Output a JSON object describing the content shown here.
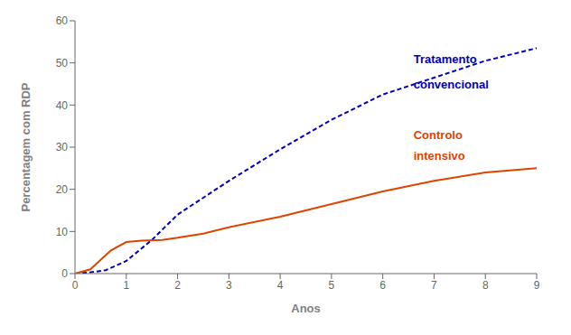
{
  "chart_data": {
    "type": "line",
    "x_label": "Anos",
    "y_label": "Percentagem com RDP",
    "xlim": [
      0,
      9
    ],
    "ylim": [
      0,
      60
    ],
    "xticks": [
      0,
      1,
      2,
      3,
      4,
      5,
      6,
      7,
      8,
      9
    ],
    "yticks": [
      0,
      10,
      20,
      30,
      40,
      50,
      60
    ],
    "grid": false,
    "series": [
      {
        "color": "#0000bb",
        "line_style": "dashed",
        "x": [
          0,
          0.3,
          0.6,
          1.0,
          1.5,
          2.0,
          3.0,
          4.0,
          5.0,
          6.0,
          7.0,
          8.0,
          9.0
        ],
        "values": [
          0,
          0.3,
          0.8,
          3.0,
          8.0,
          14.0,
          22.0,
          29.5,
          36.5,
          42.5,
          46.5,
          50.5,
          53.5
        ]
      },
      {
        "color": "#dd4400",
        "line_style": "solid",
        "x": [
          0,
          0.3,
          0.7,
          1.0,
          1.3,
          1.7,
          2.0,
          2.5,
          3.0,
          4.0,
          5.0,
          6.0,
          7.0,
          8.0,
          9.0
        ],
        "values": [
          0,
          1.0,
          5.5,
          7.5,
          7.8,
          8.0,
          8.5,
          9.5,
          11.0,
          13.5,
          16.5,
          19.5,
          22.0,
          24.0,
          25.0
        ]
      }
    ],
    "annotations": [
      {
        "text": "Tratamento",
        "x": 6.6,
        "y": 50,
        "color": "#0000bb"
      },
      {
        "text": "convencional",
        "x": 6.6,
        "y": 44,
        "color": "#0000bb"
      },
      {
        "text": "Controlo",
        "x": 6.6,
        "y": 32,
        "color": "#dd4400"
      },
      {
        "text": "intensivo",
        "x": 6.6,
        "y": 27,
        "color": "#dd4400"
      }
    ]
  }
}
